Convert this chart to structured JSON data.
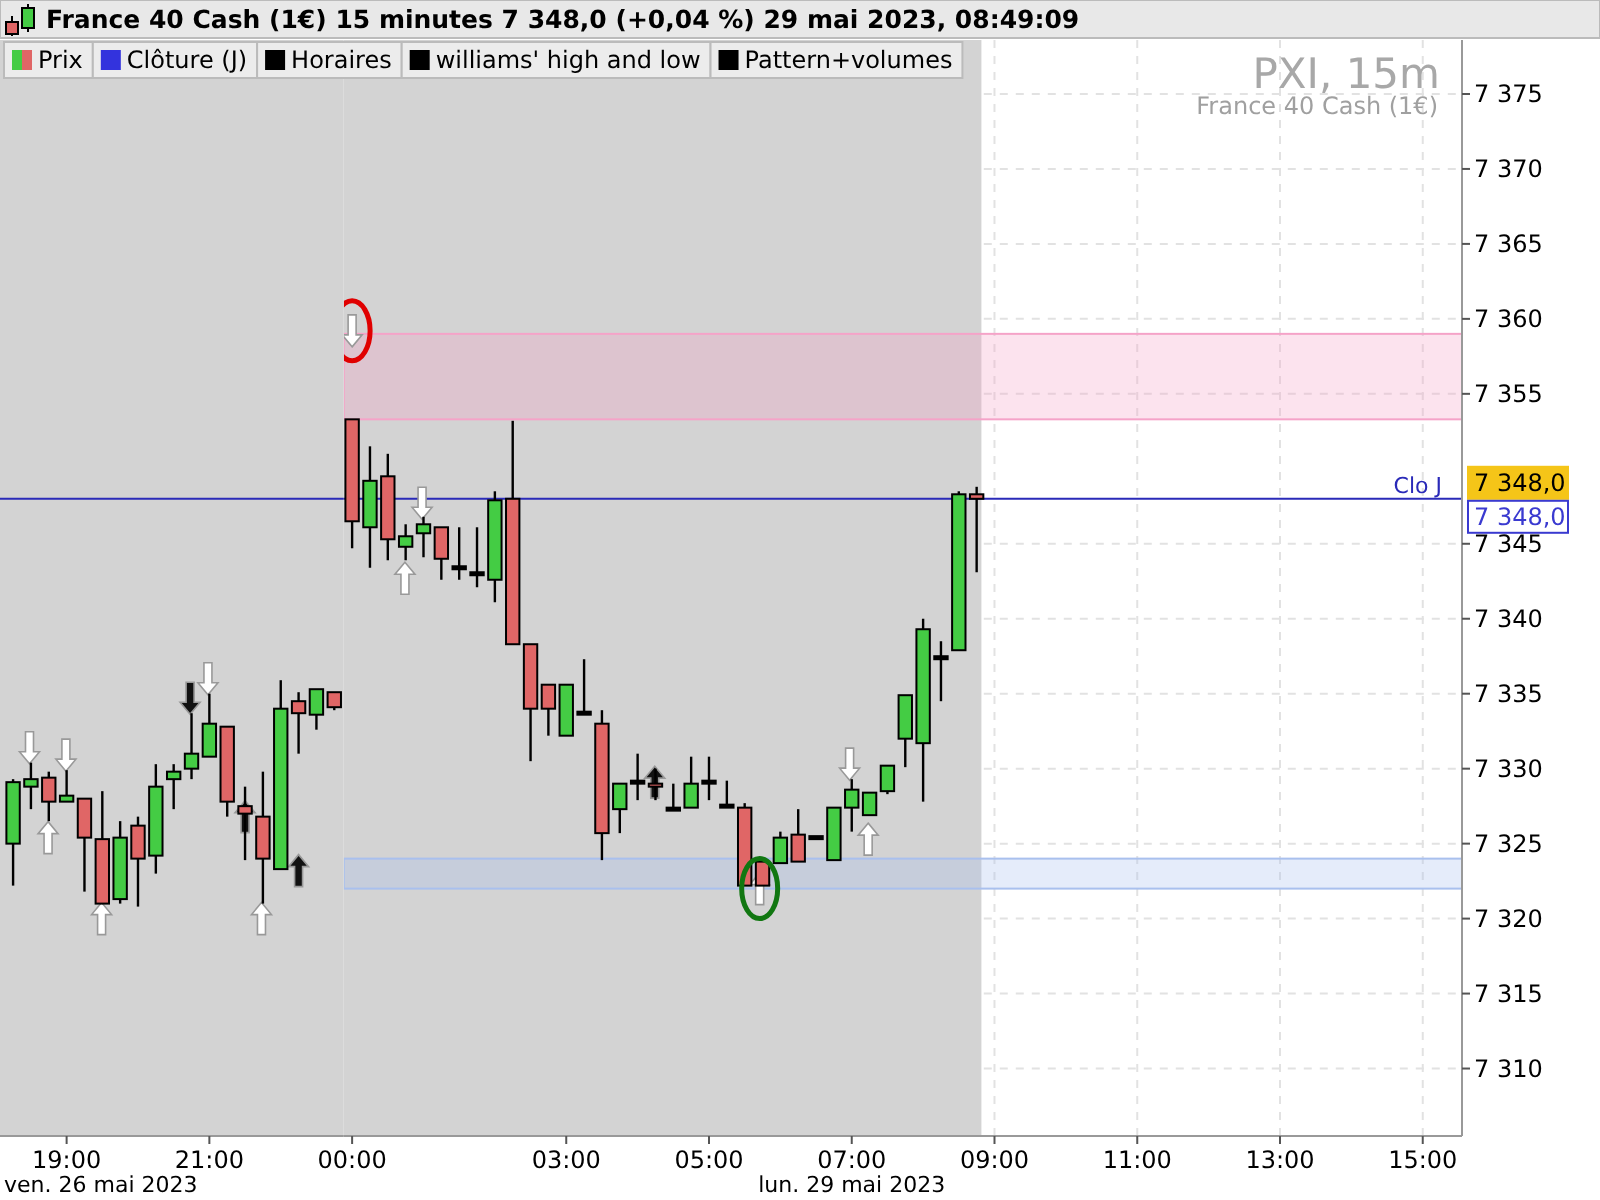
{
  "chart_data": [
    {
      "type": "candlestick",
      "title": "France 40 Cash (1€) 15 minutes 7 348,0 (+0,04 %) 29 mai 2023, 08:49:09",
      "x": [
        "2023-05-26T18:15",
        "2023-05-26T18:30",
        "2023-05-26T18:45",
        "2023-05-26T19:00",
        "2023-05-26T19:15",
        "2023-05-26T19:30",
        "2023-05-26T19:45",
        "2023-05-26T20:00",
        "2023-05-26T20:15",
        "2023-05-26T20:30",
        "2023-05-26T20:45",
        "2023-05-26T21:00",
        "2023-05-26T21:15",
        "2023-05-26T21:30",
        "2023-05-26T21:45",
        "2023-05-26T22:00",
        "2023-05-26T22:15",
        "2023-05-26T22:30",
        "2023-05-26T22:45"
      ],
      "ohlc": [
        [
          7325.0,
          7329.3,
          7322.2,
          7329.1
        ],
        [
          7328.8,
          7330.4,
          7327.3,
          7329.3
        ],
        [
          7329.4,
          7329.8,
          7326.5,
          7327.8
        ],
        [
          7327.8,
          7329.9,
          7327.8,
          7328.2
        ],
        [
          7328.0,
          7328.0,
          7321.8,
          7325.4
        ],
        [
          7325.3,
          7328.5,
          7321.0,
          7321.0
        ],
        [
          7321.3,
          7326.5,
          7321.0,
          7325.4
        ],
        [
          7326.2,
          7326.8,
          7320.8,
          7324.0
        ],
        [
          7324.2,
          7330.3,
          7323.0,
          7328.8
        ],
        [
          7329.3,
          7330.3,
          7327.3,
          7329.8
        ],
        [
          7330.0,
          7333.7,
          7329.3,
          7331.0
        ],
        [
          7330.8,
          7335.0,
          7330.8,
          7333.0
        ],
        [
          7332.8,
          7332.8,
          7326.8,
          7327.8
        ],
        [
          7327.5,
          7328.8,
          7323.9,
          7327.0
        ],
        [
          7326.8,
          7329.8,
          7321.0,
          7324.0
        ],
        [
          7323.3,
          7335.9,
          7323.3,
          7334.0
        ],
        [
          7334.5,
          7335.1,
          7331.0,
          7333.7
        ],
        [
          7333.6,
          7335.3,
          7332.6,
          7335.3
        ],
        [
          7335.1,
          7335.1,
          7333.9,
          7334.1
        ]
      ],
      "colors": [
        "#44cc44",
        "#44cc44",
        "#e06666",
        "#44cc44",
        "#e06666",
        "#e06666",
        "#44cc44",
        "#e06666",
        "#44cc44",
        "#44cc44",
        "#44cc44",
        "#44cc44",
        "#e06666",
        "#e06666",
        "#e06666",
        "#44cc44",
        "#e06666",
        "#44cc44",
        "#e06666"
      ],
      "xlim": [
        "2023-05-26T18:04",
        "2023-05-26T22:53"
      ],
      "xticks": [
        {
          "value": "2023-05-26T19:00",
          "label": "19:00"
        },
        {
          "value": "2023-05-26T21:00",
          "label": "21:00"
        }
      ],
      "ylim": [
        7305.5,
        7378.6
      ],
      "tick_labels": "x",
      "ref_lines": [
        {
          "axis": "y",
          "value": 7348.0,
          "color": "#2a2ab8"
        }
      ],
      "bands": [
        {
          "axis": "x",
          "from": "2023-05-26T18:04",
          "to": "2023-05-26T22:53",
          "color": "#d3d3d3"
        }
      ],
      "annotations": [
        "ven. 26 mai 2023",
        "Prix",
        "Clôture (J)",
        "Horaires",
        "williams' high and low",
        "Pattern+volumes"
      ]
    },
    {
      "type": "candlestick",
      "x": [
        "2023-05-29T00:00",
        "2023-05-29T00:15",
        "2023-05-29T00:30",
        "2023-05-29T00:45",
        "2023-05-29T01:00",
        "2023-05-29T01:15",
        "2023-05-29T01:30",
        "2023-05-29T01:45",
        "2023-05-29T02:00",
        "2023-05-29T02:15",
        "2023-05-29T02:30",
        "2023-05-29T02:45",
        "2023-05-29T03:00",
        "2023-05-29T03:15",
        "2023-05-29T03:30",
        "2023-05-29T03:45",
        "2023-05-29T04:00",
        "2023-05-29T04:15",
        "2023-05-29T04:30",
        "2023-05-29T04:45",
        "2023-05-29T05:00",
        "2023-05-29T05:15",
        "2023-05-29T05:30",
        "2023-05-29T05:45",
        "2023-05-29T06:00",
        "2023-05-29T06:15",
        "2023-05-29T06:30",
        "2023-05-29T06:45",
        "2023-05-29T07:00",
        "2023-05-29T07:15",
        "2023-05-29T07:30",
        "2023-05-29T07:45",
        "2023-05-29T08:00",
        "2023-05-29T08:15",
        "2023-05-29T08:30",
        "2023-05-29T08:45"
      ],
      "ohlc": [
        [
          7353.3,
          7353.3,
          7344.7,
          7346.5
        ],
        [
          7346.1,
          7351.5,
          7343.4,
          7349.2
        ],
        [
          7349.5,
          7351.0,
          7343.9,
          7345.3
        ],
        [
          7344.8,
          7346.3,
          7343.9,
          7345.5
        ],
        [
          7345.7,
          7346.8,
          7344.1,
          7346.3
        ],
        [
          7346.1,
          7346.1,
          7342.6,
          7344.0
        ],
        [
          7343.5,
          7346.1,
          7342.6,
          7343.5
        ],
        [
          7343.1,
          7346.1,
          7342.1,
          7343.1
        ],
        [
          7342.6,
          7348.5,
          7341.1,
          7347.9
        ],
        [
          7348.0,
          7353.2,
          7338.3,
          7338.3
        ],
        [
          7338.3,
          7338.3,
          7330.5,
          7334.0
        ],
        [
          7335.6,
          7335.6,
          7332.2,
          7334.0
        ],
        [
          7332.2,
          7335.6,
          7332.2,
          7335.6
        ],
        [
          7333.8,
          7337.3,
          7333.8,
          7333.8
        ],
        [
          7333.0,
          7333.9,
          7323.9,
          7325.7
        ],
        [
          7327.3,
          7329.0,
          7325.7,
          7329.0
        ],
        [
          7329.2,
          7331.0,
          7327.9,
          7329.2
        ],
        [
          7329.0,
          7330.0,
          7327.9,
          7328.8
        ],
        [
          7327.4,
          7329.0,
          7327.4,
          7327.4
        ],
        [
          7327.4,
          7330.8,
          7327.4,
          7329.0
        ],
        [
          7329.2,
          7330.8,
          7327.9,
          7329.2
        ],
        [
          7327.6,
          7329.2,
          7327.4,
          7327.6
        ],
        [
          7327.4,
          7327.7,
          7322.2,
          7322.2
        ],
        [
          7323.8,
          7323.8,
          7322.2,
          7322.2
        ],
        [
          7323.7,
          7325.8,
          7323.7,
          7325.4
        ],
        [
          7325.6,
          7327.3,
          7323.8,
          7323.8
        ],
        [
          7325.5,
          7325.5,
          7325.5,
          7325.5
        ],
        [
          7323.9,
          7327.4,
          7323.9,
          7327.4
        ],
        [
          7327.4,
          7329.3,
          7325.8,
          7328.6
        ],
        [
          7326.9,
          7328.4,
          7326.9,
          7328.4
        ],
        [
          7328.5,
          7330.2,
          7328.3,
          7330.2
        ],
        [
          7332.0,
          7334.9,
          7330.1,
          7334.9
        ],
        [
          7331.7,
          7340.0,
          7327.8,
          7339.3
        ],
        [
          7337.5,
          7338.5,
          7334.5,
          7337.5
        ],
        [
          7337.9,
          7348.5,
          7337.9,
          7348.3
        ],
        [
          7348.3,
          7348.8,
          7343.1,
          7348.0
        ]
      ],
      "colors": [
        "#e06666",
        "#44cc44",
        "#e06666",
        "#44cc44",
        "#44cc44",
        "#e06666",
        "#000000",
        "#000000",
        "#44cc44",
        "#e06666",
        "#e06666",
        "#e06666",
        "#44cc44",
        "#000000",
        "#e06666",
        "#44cc44",
        "#000000",
        "#e06666",
        "#000000",
        "#44cc44",
        "#000000",
        "#000000",
        "#e06666",
        "#e06666",
        "#44cc44",
        "#e06666",
        "#000000",
        "#44cc44",
        "#44cc44",
        "#44cc44",
        "#44cc44",
        "#44cc44",
        "#44cc44",
        "#000000",
        "#44cc44",
        "#e06666"
      ],
      "xlim": [
        "2023-05-28T23:53",
        "2023-05-29T15:33"
      ],
      "xticks": [
        {
          "value": "2023-05-29T00:00",
          "label": "00:00"
        },
        {
          "value": "2023-05-29T03:00",
          "label": "03:00"
        },
        {
          "value": "2023-05-29T05:00",
          "label": "05:00"
        },
        {
          "value": "2023-05-29T07:00",
          "label": "07:00"
        },
        {
          "value": "2023-05-29T09:00",
          "label": "09:00"
        },
        {
          "value": "2023-05-29T11:00",
          "label": "11:00"
        },
        {
          "value": "2023-05-29T13:00",
          "label": "13:00"
        },
        {
          "value": "2023-05-29T15:00",
          "label": "15:00"
        }
      ],
      "ylim": [
        7305.5,
        7378.6
      ],
      "yticks": [
        {
          "value": 7310,
          "label": "7 310"
        },
        {
          "value": 7315,
          "label": "7 315"
        },
        {
          "value": 7320,
          "label": "7 320"
        },
        {
          "value": 7325,
          "label": "7 325"
        },
        {
          "value": 7330,
          "label": "7 330"
        },
        {
          "value": 7335,
          "label": "7 335"
        },
        {
          "value": 7340,
          "label": "7 340"
        },
        {
          "value": 7345,
          "label": "7 345"
        },
        {
          "value": 7355,
          "label": "7 355"
        },
        {
          "value": 7360,
          "label": "7 360"
        },
        {
          "value": 7365,
          "label": "7 365"
        },
        {
          "value": 7370,
          "label": "7 370"
        },
        {
          "value": 7375,
          "label": "7 375"
        }
      ],
      "grid": true,
      "ref_lines": [
        {
          "axis": "y",
          "value": 7348.0,
          "label": "Clo J",
          "color": "#2a2ab8"
        }
      ],
      "bands": [
        {
          "axis": "x",
          "from": "2023-05-28T23:53",
          "to": "2023-05-29T08:49",
          "color": "#d3d3d3"
        },
        {
          "axis": "y",
          "from": 7353.3,
          "to": 7359.0,
          "color": "#f5a3c8"
        },
        {
          "axis": "y",
          "from": 7322.0,
          "to": 7324.0,
          "color": "#a9c0ee"
        }
      ],
      "annotations": [
        "lun. 29 mai 2023",
        "PXI, 15m",
        "France 40 Cash (1€)",
        "7 348,0",
        "7 348,0"
      ]
    }
  ]
}
